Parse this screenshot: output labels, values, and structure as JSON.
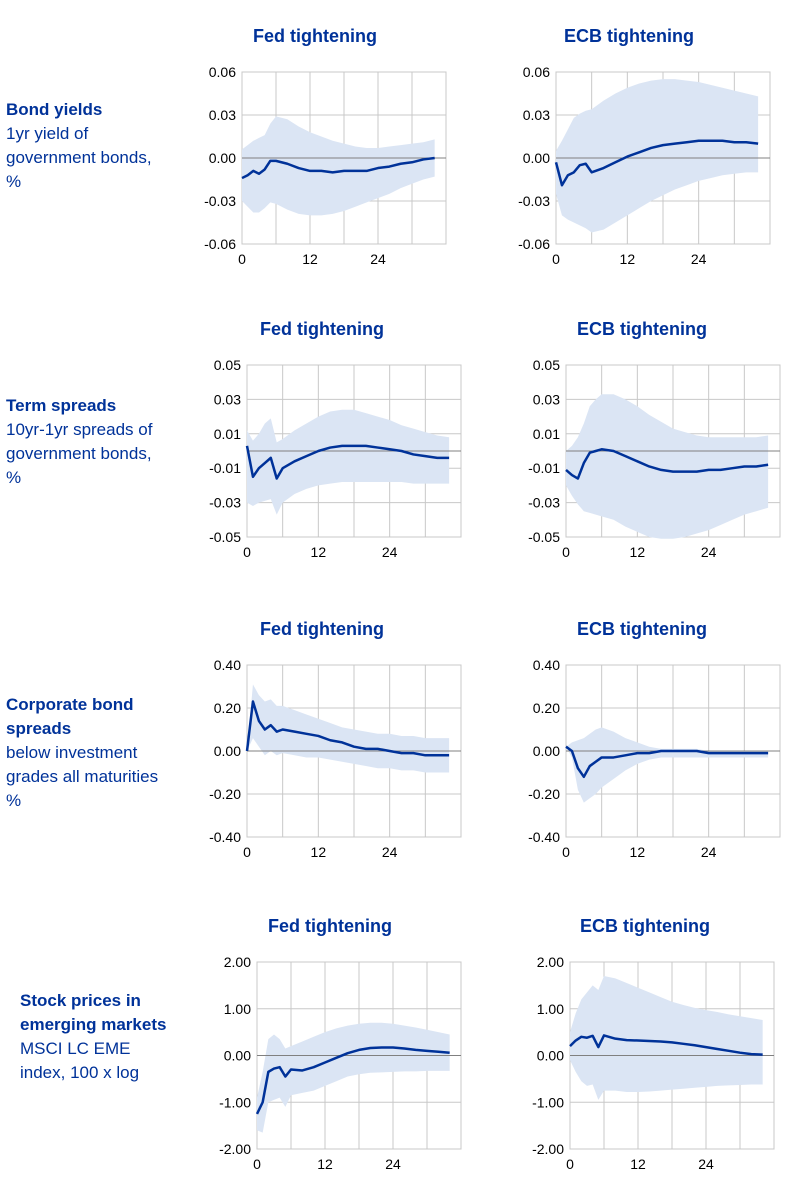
{
  "colors": {
    "line": "#003299",
    "band": "#dbe5f4",
    "grid": "#c8c8c8",
    "zero": "#808080",
    "text": "#003299"
  },
  "rows": [
    {
      "title": "Bond yields",
      "subtitle": [
        "1yr yield of",
        "government bonds,",
        "%"
      ]
    },
    {
      "title": "Term spreads",
      "subtitle": [
        "10yr-1yr spreads of",
        "government bonds,",
        "%"
      ]
    },
    {
      "title": "Corporate bond",
      "title2": "spreads",
      "subtitle": [
        "below investment",
        "grades all maturities",
        "%"
      ]
    },
    {
      "title": "Stock prices in",
      "title2": "emerging markets",
      "subtitle": [
        "MSCI LC EME",
        "index, 100 x log"
      ]
    }
  ],
  "chart_data": [
    {
      "type": "line",
      "row": 0,
      "col": 0,
      "title": "Fed tightening",
      "ylim": [
        -0.06,
        0.06
      ],
      "yticks": [
        "0.06",
        "0.03",
        "0.00",
        "-0.03",
        "-0.06"
      ],
      "xlim": [
        0,
        36
      ],
      "xticks": [
        0,
        12,
        24
      ],
      "grid": true,
      "x": [
        0,
        1,
        2,
        3,
        4,
        5,
        6,
        8,
        10,
        12,
        14,
        16,
        18,
        20,
        22,
        24,
        26,
        28,
        30,
        32,
        34
      ],
      "series": [
        {
          "values": [
            -0.014,
            -0.012,
            -0.009,
            -0.011,
            -0.008,
            -0.002,
            -0.002,
            -0.004,
            -0.007,
            -0.009,
            -0.009,
            -0.01,
            -0.009,
            -0.009,
            -0.009,
            -0.007,
            -0.006,
            -0.004,
            -0.003,
            -0.001,
            0.0
          ]
        }
      ],
      "band": {
        "upper": [
          0.006,
          0.009,
          0.012,
          0.014,
          0.016,
          0.024,
          0.029,
          0.027,
          0.022,
          0.018,
          0.015,
          0.012,
          0.01,
          0.008,
          0.007,
          0.007,
          0.008,
          0.009,
          0.01,
          0.011,
          0.013
        ],
        "lower": [
          -0.03,
          -0.034,
          -0.038,
          -0.038,
          -0.035,
          -0.031,
          -0.032,
          -0.036,
          -0.039,
          -0.04,
          -0.04,
          -0.039,
          -0.037,
          -0.034,
          -0.031,
          -0.028,
          -0.025,
          -0.021,
          -0.018,
          -0.015,
          -0.013
        ]
      }
    },
    {
      "type": "line",
      "row": 0,
      "col": 1,
      "title": "ECB tightening",
      "ylim": [
        -0.06,
        0.06
      ],
      "yticks": [
        "0.06",
        "0.03",
        "0.00",
        "-0.03",
        "-0.06"
      ],
      "xlim": [
        0,
        36
      ],
      "xticks": [
        0,
        12,
        24
      ],
      "grid": true,
      "x": [
        0,
        1,
        2,
        3,
        4,
        5,
        6,
        8,
        10,
        12,
        14,
        16,
        18,
        20,
        22,
        24,
        26,
        28,
        30,
        32,
        34
      ],
      "series": [
        {
          "values": [
            -0.003,
            -0.019,
            -0.012,
            -0.01,
            -0.005,
            -0.004,
            -0.01,
            -0.007,
            -0.003,
            0.001,
            0.004,
            0.007,
            0.009,
            0.01,
            0.011,
            0.012,
            0.012,
            0.012,
            0.011,
            0.011,
            0.01
          ]
        }
      ],
      "band": {
        "upper": [
          0.005,
          0.012,
          0.02,
          0.028,
          0.031,
          0.033,
          0.034,
          0.04,
          0.045,
          0.049,
          0.052,
          0.054,
          0.055,
          0.055,
          0.054,
          0.053,
          0.051,
          0.049,
          0.047,
          0.045,
          0.043
        ],
        "lower": [
          -0.025,
          -0.04,
          -0.043,
          -0.045,
          -0.047,
          -0.049,
          -0.052,
          -0.05,
          -0.045,
          -0.04,
          -0.035,
          -0.03,
          -0.026,
          -0.022,
          -0.019,
          -0.016,
          -0.014,
          -0.012,
          -0.011,
          -0.01,
          -0.01
        ]
      }
    },
    {
      "type": "line",
      "row": 1,
      "col": 0,
      "title": "Fed tightening",
      "ylim": [
        -0.05,
        0.05
      ],
      "yticks": [
        "0.05",
        "0.03",
        "0.01",
        "-0.01",
        "-0.03",
        "-0.05"
      ],
      "xlim": [
        0,
        36
      ],
      "xticks": [
        0,
        12,
        24
      ],
      "grid": true,
      "x": [
        0,
        1,
        2,
        3,
        4,
        5,
        6,
        8,
        10,
        12,
        14,
        16,
        18,
        20,
        22,
        24,
        26,
        28,
        30,
        32,
        34
      ],
      "series": [
        {
          "values": [
            0.003,
            -0.015,
            -0.01,
            -0.007,
            -0.004,
            -0.016,
            -0.01,
            -0.006,
            -0.003,
            0.0,
            0.002,
            0.003,
            0.003,
            0.003,
            0.002,
            0.001,
            0.0,
            -0.002,
            -0.003,
            -0.004,
            -0.004
          ]
        }
      ],
      "band": {
        "upper": [
          0.012,
          0.006,
          0.01,
          0.016,
          0.019,
          0.005,
          0.007,
          0.012,
          0.016,
          0.02,
          0.023,
          0.024,
          0.024,
          0.022,
          0.02,
          0.018,
          0.015,
          0.013,
          0.011,
          0.009,
          0.008
        ],
        "lower": [
          -0.03,
          -0.032,
          -0.03,
          -0.029,
          -0.028,
          -0.037,
          -0.03,
          -0.025,
          -0.022,
          -0.02,
          -0.019,
          -0.018,
          -0.018,
          -0.018,
          -0.018,
          -0.018,
          -0.018,
          -0.019,
          -0.019,
          -0.019,
          -0.019
        ]
      }
    },
    {
      "type": "line",
      "row": 1,
      "col": 1,
      "title": "ECB tightening",
      "ylim": [
        -0.05,
        0.05
      ],
      "yticks": [
        "0.05",
        "0.03",
        "0.01",
        "-0.01",
        "-0.03",
        "-0.05"
      ],
      "xlim": [
        0,
        36
      ],
      "xticks": [
        0,
        12,
        24
      ],
      "grid": true,
      "x": [
        0,
        1,
        2,
        3,
        4,
        5,
        6,
        8,
        10,
        12,
        14,
        16,
        18,
        20,
        22,
        24,
        26,
        28,
        30,
        32,
        34
      ],
      "series": [
        {
          "values": [
            -0.011,
            -0.014,
            -0.016,
            -0.007,
            -0.001,
            0.0,
            0.001,
            0.0,
            -0.003,
            -0.006,
            -0.009,
            -0.011,
            -0.012,
            -0.012,
            -0.012,
            -0.011,
            -0.011,
            -0.01,
            -0.009,
            -0.009,
            -0.008
          ]
        }
      ],
      "band": {
        "upper": [
          0.0,
          0.003,
          0.008,
          0.016,
          0.026,
          0.03,
          0.033,
          0.033,
          0.03,
          0.026,
          0.021,
          0.017,
          0.013,
          0.011,
          0.009,
          0.008,
          0.008,
          0.008,
          0.008,
          0.008,
          0.009
        ],
        "lower": [
          -0.02,
          -0.026,
          -0.031,
          -0.035,
          -0.036,
          -0.037,
          -0.038,
          -0.04,
          -0.044,
          -0.047,
          -0.05,
          -0.051,
          -0.051,
          -0.05,
          -0.048,
          -0.046,
          -0.043,
          -0.04,
          -0.037,
          -0.035,
          -0.033
        ]
      }
    },
    {
      "type": "line",
      "row": 2,
      "col": 0,
      "title": "Fed tightening",
      "ylim": [
        -0.4,
        0.4
      ],
      "yticks": [
        "0.40",
        "0.20",
        "0.00",
        "-0.20",
        "-0.40"
      ],
      "xlim": [
        0,
        36
      ],
      "xticks": [
        0,
        12,
        24
      ],
      "grid": true,
      "x": [
        0,
        1,
        2,
        3,
        4,
        5,
        6,
        8,
        10,
        12,
        14,
        16,
        18,
        20,
        22,
        24,
        26,
        28,
        30,
        32,
        34
      ],
      "series": [
        {
          "values": [
            0.0,
            0.23,
            0.14,
            0.1,
            0.12,
            0.09,
            0.1,
            0.09,
            0.08,
            0.07,
            0.05,
            0.04,
            0.02,
            0.01,
            0.01,
            0.0,
            -0.01,
            -0.01,
            -0.02,
            -0.02,
            -0.02
          ]
        }
      ],
      "band": {
        "upper": [
          0.0,
          0.31,
          0.26,
          0.23,
          0.24,
          0.21,
          0.21,
          0.19,
          0.17,
          0.15,
          0.13,
          0.11,
          0.1,
          0.09,
          0.08,
          0.08,
          0.07,
          0.07,
          0.06,
          0.06,
          0.06
        ],
        "lower": [
          0.0,
          0.06,
          0.02,
          -0.02,
          0.0,
          -0.02,
          -0.01,
          -0.02,
          -0.03,
          -0.03,
          -0.04,
          -0.05,
          -0.06,
          -0.07,
          -0.08,
          -0.08,
          -0.09,
          -0.09,
          -0.1,
          -0.1,
          -0.1
        ]
      }
    },
    {
      "type": "line",
      "row": 2,
      "col": 1,
      "title": "ECB tightening",
      "ylim": [
        -0.4,
        0.4
      ],
      "yticks": [
        "0.40",
        "0.20",
        "0.00",
        "-0.20",
        "-0.40"
      ],
      "xlim": [
        0,
        36
      ],
      "xticks": [
        0,
        12,
        24
      ],
      "grid": true,
      "x": [
        0,
        1,
        2,
        3,
        4,
        5,
        6,
        8,
        10,
        12,
        14,
        16,
        18,
        20,
        22,
        24,
        26,
        28,
        30,
        32,
        34
      ],
      "series": [
        {
          "values": [
            0.02,
            0.0,
            -0.08,
            -0.12,
            -0.07,
            -0.05,
            -0.03,
            -0.03,
            -0.02,
            -0.01,
            -0.01,
            0.0,
            0.0,
            0.0,
            0.0,
            -0.01,
            -0.01,
            -0.01,
            -0.01,
            -0.01,
            -0.01
          ]
        }
      ],
      "band": {
        "upper": [
          0.02,
          0.04,
          0.05,
          0.06,
          0.08,
          0.1,
          0.11,
          0.09,
          0.06,
          0.04,
          0.02,
          0.01,
          0.01,
          0.01,
          0.01,
          0.0,
          0.0,
          0.0,
          0.0,
          0.0,
          0.0
        ],
        "lower": [
          0.02,
          -0.03,
          -0.18,
          -0.24,
          -0.22,
          -0.2,
          -0.17,
          -0.13,
          -0.09,
          -0.06,
          -0.04,
          -0.03,
          -0.03,
          -0.03,
          -0.03,
          -0.03,
          -0.03,
          -0.03,
          -0.03,
          -0.03,
          -0.03
        ]
      }
    },
    {
      "type": "line",
      "row": 3,
      "col": 0,
      "title": "Fed tightening",
      "ylim": [
        -2.0,
        2.0
      ],
      "yticks": [
        "2.00",
        "1.00",
        "0.00",
        "-1.00",
        "-2.00"
      ],
      "xlim": [
        0,
        36
      ],
      "xticks": [
        0,
        12,
        24
      ],
      "grid": true,
      "x": [
        0,
        1,
        2,
        3,
        4,
        5,
        6,
        8,
        10,
        12,
        14,
        16,
        18,
        20,
        22,
        24,
        26,
        28,
        30,
        32,
        34
      ],
      "series": [
        {
          "values": [
            -1.25,
            -1.0,
            -0.35,
            -0.28,
            -0.25,
            -0.45,
            -0.3,
            -0.32,
            -0.25,
            -0.15,
            -0.05,
            0.05,
            0.12,
            0.16,
            0.17,
            0.17,
            0.15,
            0.12,
            0.1,
            0.08,
            0.06
          ]
        }
      ],
      "band": {
        "upper": [
          -0.9,
          -0.35,
          0.35,
          0.45,
          0.35,
          0.15,
          0.2,
          0.3,
          0.4,
          0.5,
          0.58,
          0.64,
          0.68,
          0.7,
          0.7,
          0.68,
          0.64,
          0.6,
          0.55,
          0.5,
          0.45
        ],
        "lower": [
          -1.6,
          -1.65,
          -1.0,
          -0.95,
          -0.9,
          -1.1,
          -0.85,
          -0.8,
          -0.75,
          -0.65,
          -0.55,
          -0.45,
          -0.4,
          -0.37,
          -0.36,
          -0.35,
          -0.34,
          -0.34,
          -0.33,
          -0.33,
          -0.33
        ]
      }
    },
    {
      "type": "line",
      "row": 3,
      "col": 1,
      "title": "ECB tightening",
      "ylim": [
        -2.0,
        2.0
      ],
      "yticks": [
        "2.00",
        "1.00",
        "0.00",
        "-1.00",
        "-2.00"
      ],
      "xlim": [
        0,
        36
      ],
      "xticks": [
        0,
        12,
        24
      ],
      "grid": true,
      "x": [
        0,
        1,
        2,
        3,
        4,
        5,
        6,
        8,
        10,
        12,
        14,
        16,
        18,
        20,
        22,
        24,
        26,
        28,
        30,
        32,
        34
      ],
      "series": [
        {
          "values": [
            0.2,
            0.32,
            0.4,
            0.38,
            0.42,
            0.18,
            0.43,
            0.36,
            0.33,
            0.32,
            0.31,
            0.3,
            0.28,
            0.25,
            0.22,
            0.18,
            0.14,
            0.1,
            0.06,
            0.03,
            0.02
          ]
        }
      ],
      "band": {
        "upper": [
          0.5,
          0.9,
          1.2,
          1.35,
          1.5,
          1.4,
          1.7,
          1.65,
          1.55,
          1.45,
          1.35,
          1.25,
          1.15,
          1.08,
          1.02,
          0.97,
          0.93,
          0.88,
          0.84,
          0.8,
          0.76
        ],
        "lower": [
          -0.1,
          -0.35,
          -0.55,
          -0.65,
          -0.62,
          -0.95,
          -0.75,
          -0.75,
          -0.78,
          -0.78,
          -0.77,
          -0.75,
          -0.73,
          -0.71,
          -0.69,
          -0.67,
          -0.65,
          -0.64,
          -0.63,
          -0.62,
          -0.62
        ]
      }
    }
  ]
}
